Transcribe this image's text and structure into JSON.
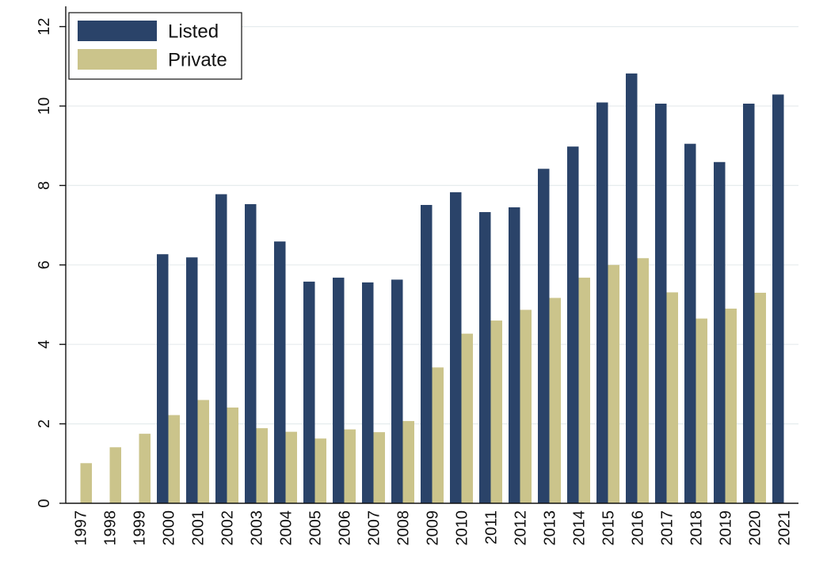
{
  "chart_data": {
    "type": "bar",
    "title": "",
    "xlabel": "",
    "ylabel": "",
    "categories": [
      "1997",
      "1998",
      "1999",
      "2000",
      "2001",
      "2002",
      "2003",
      "2004",
      "2005",
      "2006",
      "2007",
      "2008",
      "2009",
      "2010",
      "2011",
      "2012",
      "2013",
      "2014",
      "2015",
      "2016",
      "2017",
      "2018",
      "2019",
      "2020",
      "2021"
    ],
    "series": [
      {
        "name": "Listed",
        "color": "#2a4369",
        "values": [
          null,
          null,
          null,
          6.27,
          6.19,
          7.78,
          7.53,
          6.59,
          5.58,
          5.68,
          5.56,
          5.63,
          7.51,
          7.83,
          7.33,
          7.45,
          8.42,
          8.98,
          10.09,
          10.82,
          10.06,
          9.05,
          8.59,
          10.06,
          10.29
        ]
      },
      {
        "name": "Private",
        "color": "#cbc48b",
        "values": [
          1.01,
          1.41,
          1.75,
          2.22,
          2.6,
          2.41,
          1.89,
          1.8,
          1.63,
          1.86,
          1.79,
          2.07,
          3.42,
          4.27,
          4.6,
          4.87,
          5.17,
          5.68,
          6.0,
          6.17,
          5.31,
          4.65,
          4.9,
          5.3,
          null
        ]
      }
    ],
    "ylim": [
      0,
      12
    ],
    "yticks": [
      0,
      2,
      4,
      6,
      8,
      10,
      12
    ],
    "grid": true,
    "legend_position": "top-left"
  }
}
